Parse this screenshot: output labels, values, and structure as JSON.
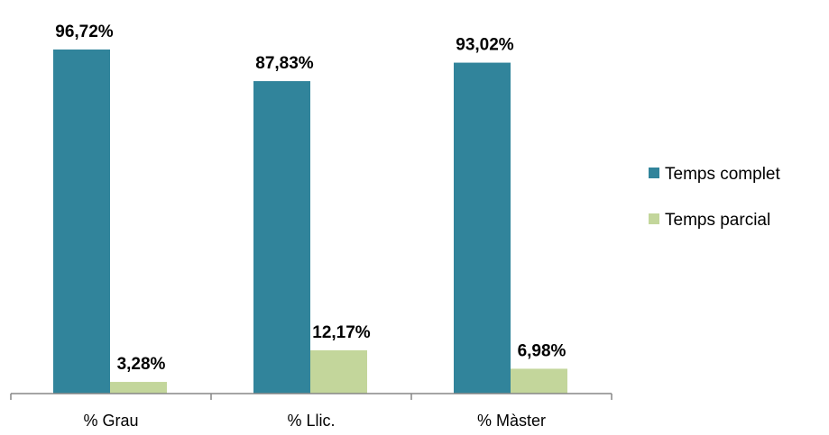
{
  "chart_data": {
    "type": "bar",
    "categories": [
      "% Grau",
      "% Llic.",
      "% Màster"
    ],
    "series": [
      {
        "name": "Temps complet",
        "values": [
          96.72,
          87.83,
          93.02
        ],
        "labels": [
          "96,72%",
          "87,83%",
          "93,02%"
        ],
        "color": "#31849B"
      },
      {
        "name": "Temps parcial",
        "values": [
          3.28,
          12.17,
          6.98
        ],
        "labels": [
          "3,28%",
          "12,17%",
          "6,98%"
        ],
        "color": "#C3D69B"
      }
    ],
    "ylim": [
      0,
      100
    ],
    "grid": false,
    "legend_position": "right"
  }
}
